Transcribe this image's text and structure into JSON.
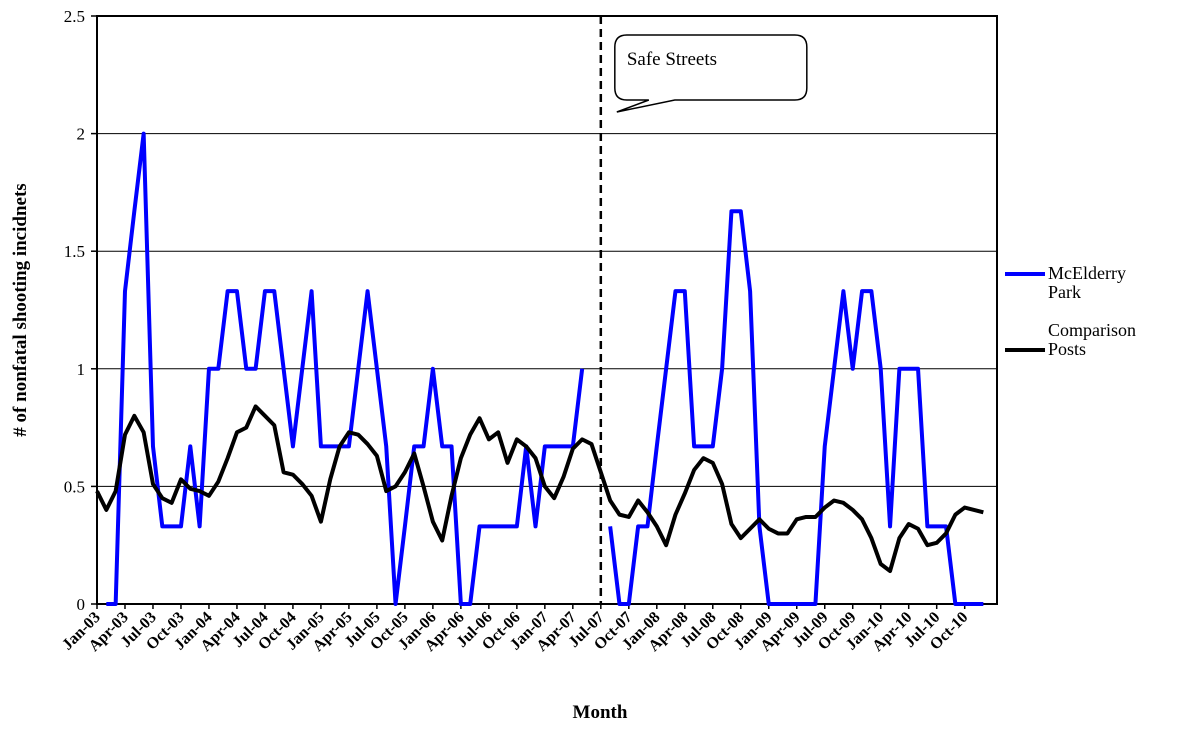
{
  "chart_data": {
    "type": "line",
    "x_label": "Month",
    "y_label": "# of nonfatal shooting incidnets",
    "categories": [
      "Jan-03",
      null,
      null,
      "Apr-03",
      null,
      null,
      "Jul-03",
      null,
      null,
      "Oct-03",
      null,
      null,
      "Jan-04",
      null,
      null,
      "Apr-04",
      null,
      null,
      "Jul-04",
      null,
      null,
      "Oct-04",
      null,
      null,
      "Jan-05",
      null,
      null,
      "Apr-05",
      null,
      null,
      "Jul-05",
      null,
      null,
      "Oct-05",
      null,
      null,
      "Jan-06",
      null,
      null,
      "Apr-06",
      null,
      null,
      "Jul-06",
      null,
      null,
      "Oct-06",
      null,
      null,
      "Jan-07",
      null,
      null,
      "Apr-07",
      null,
      null,
      "Jul-07",
      null,
      null,
      "Oct-07",
      null,
      null,
      "Jan-08",
      null,
      null,
      "Apr-08",
      null,
      null,
      "Jul-08",
      null,
      null,
      "Oct-08",
      null,
      null,
      "Jan-09",
      null,
      null,
      "Apr-09",
      null,
      null,
      "Jul-09",
      null,
      null,
      "Oct-09",
      null,
      null,
      "Jan-10",
      null,
      null,
      "Apr-10",
      null,
      null,
      "Jul-10",
      null,
      null,
      "Oct-10",
      null,
      null
    ],
    "series": [
      {
        "name": "McElderry Park",
        "color": "#0000ff",
        "values": [
          null,
          0,
          0,
          1.33,
          1.67,
          2,
          0.67,
          0.33,
          0.33,
          0.33,
          0.67,
          0.33,
          1,
          1,
          1.33,
          1.33,
          1,
          1,
          1.33,
          1.33,
          1,
          0.67,
          1,
          1.33,
          0.67,
          0.67,
          0.67,
          0.67,
          1,
          1.33,
          1,
          0.67,
          0,
          0.33,
          0.67,
          0.67,
          1,
          0.67,
          0.67,
          0,
          0,
          0.33,
          0.33,
          0.33,
          0.33,
          0.33,
          0.67,
          0.33,
          0.67,
          0.67,
          0.67,
          0.67,
          1,
          null,
          null,
          0.33,
          0,
          0,
          0.33,
          0.33,
          0.67,
          1,
          1.33,
          1.33,
          0.67,
          0.67,
          0.67,
          1,
          1.67,
          1.67,
          1.33,
          0.33,
          0,
          0,
          0,
          0,
          0,
          0,
          0.67,
          1,
          1.33,
          1,
          1.33,
          1.33,
          1,
          0.33,
          1,
          1,
          1,
          0.33,
          0.33,
          0.33,
          0,
          0,
          0,
          0
        ]
      },
      {
        "name": "Comparison Posts",
        "color": "#000000",
        "values": [
          0.48,
          0.4,
          0.48,
          0.72,
          0.8,
          0.73,
          0.51,
          0.45,
          0.43,
          0.53,
          0.49,
          0.48,
          0.46,
          0.52,
          0.62,
          0.73,
          0.75,
          0.84,
          0.8,
          0.76,
          0.56,
          0.55,
          0.51,
          0.46,
          0.35,
          0.53,
          0.67,
          0.73,
          0.72,
          0.68,
          0.63,
          0.48,
          0.5,
          0.56,
          0.64,
          0.5,
          0.35,
          0.27,
          0.46,
          0.62,
          0.72,
          0.79,
          0.7,
          0.73,
          0.6,
          0.7,
          0.67,
          0.62,
          0.5,
          0.45,
          0.54,
          0.66,
          0.7,
          0.68,
          0.56,
          0.44,
          0.38,
          0.37,
          0.44,
          0.39,
          0.33,
          0.25,
          0.38,
          0.47,
          0.57,
          0.62,
          0.6,
          0.51,
          0.34,
          0.28,
          0.32,
          0.36,
          0.32,
          0.3,
          0.3,
          0.36,
          0.37,
          0.37,
          0.41,
          0.44,
          0.43,
          0.4,
          0.36,
          0.28,
          0.17,
          0.14,
          0.28,
          0.34,
          0.32,
          0.25,
          0.26,
          0.3,
          0.38,
          0.41,
          0.4,
          0.39
        ]
      }
    ],
    "ylim": [
      0,
      2.5
    ],
    "yticks": [
      0,
      0.5,
      1,
      1.5,
      2,
      2.5
    ],
    "grid": true,
    "annotation": {
      "text": "Safe Streets",
      "at": "Jul-07"
    },
    "legend": "right"
  }
}
